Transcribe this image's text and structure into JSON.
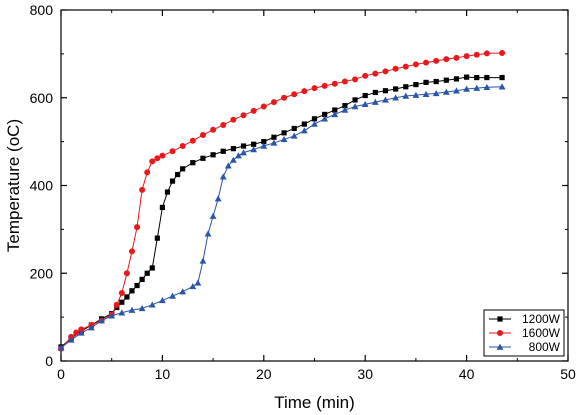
{
  "chart_data": {
    "type": "line",
    "xlabel": "Time (min)",
    "ylabel": "Temperature (oC)",
    "xlim": [
      0,
      50
    ],
    "ylim": [
      0,
      800
    ],
    "xticks": [
      "0",
      "10",
      "20",
      "30",
      "40",
      "50"
    ],
    "yticks": [
      "0",
      "200",
      "400",
      "600",
      "800"
    ],
    "grid": false,
    "legend_position": "bottom-right",
    "series": [
      {
        "name": "1200W",
        "color": "#000000",
        "marker": "square",
        "x": [
          0,
          1,
          2,
          3,
          4,
          5,
          5.5,
          6,
          6.5,
          7,
          7.5,
          8,
          8.5,
          9,
          9.5,
          10,
          10.5,
          11,
          11.5,
          12,
          13,
          14,
          15,
          16,
          17,
          18,
          19,
          20,
          21,
          22,
          23,
          24,
          25,
          26,
          27,
          28,
          29,
          30,
          31,
          32,
          33,
          34,
          35,
          36,
          37,
          38,
          39,
          40,
          41,
          42,
          43.5
        ],
        "y": [
          32,
          52,
          68,
          82,
          96,
          108,
          122,
          134,
          146,
          160,
          172,
          186,
          200,
          212,
          280,
          350,
          385,
          410,
          425,
          438,
          452,
          462,
          470,
          478,
          484,
          490,
          494,
          500,
          510,
          520,
          530,
          540,
          552,
          562,
          572,
          582,
          595,
          605,
          612,
          616,
          620,
          625,
          630,
          635,
          637,
          640,
          643,
          647,
          646,
          646,
          646
        ]
      },
      {
        "name": "1600W",
        "color": "#e8191c",
        "marker": "circle",
        "x": [
          0,
          1,
          1.5,
          2,
          3,
          4,
          5,
          5.5,
          6,
          6.5,
          7,
          7.5,
          8,
          8.5,
          9,
          9.5,
          10,
          11,
          12,
          13,
          14,
          15,
          16,
          17,
          18,
          19,
          20,
          21,
          22,
          23,
          24,
          25,
          26,
          27,
          28,
          29,
          30,
          31,
          32,
          33,
          34,
          35,
          36,
          37,
          38,
          39,
          40,
          41,
          42,
          43.5
        ],
        "y": [
          28,
          55,
          65,
          72,
          82,
          92,
          106,
          128,
          155,
          200,
          250,
          305,
          390,
          430,
          455,
          462,
          468,
          478,
          490,
          502,
          515,
          527,
          538,
          550,
          560,
          570,
          580,
          590,
          600,
          608,
          615,
          622,
          627,
          632,
          637,
          642,
          650,
          655,
          660,
          666,
          671,
          676,
          680,
          684,
          688,
          691,
          695,
          698,
          701,
          702
        ]
      },
      {
        "name": "800W",
        "color": "#2a55a8",
        "marker": "triangle",
        "x": [
          0,
          1,
          2,
          3,
          4,
          5,
          6,
          7,
          8,
          9,
          10,
          11,
          12,
          13,
          13.5,
          14,
          14.5,
          15,
          15.5,
          16,
          16.5,
          17,
          17.5,
          18,
          19,
          20,
          21,
          22,
          23,
          24,
          25,
          26,
          27,
          28,
          29,
          30,
          31,
          32,
          33,
          34,
          35,
          36,
          37,
          38,
          39,
          40,
          41,
          42,
          43.5
        ],
        "y": [
          30,
          48,
          64,
          76,
          92,
          103,
          110,
          116,
          120,
          128,
          138,
          148,
          158,
          170,
          178,
          228,
          290,
          330,
          370,
          420,
          445,
          458,
          468,
          475,
          482,
          490,
          497,
          505,
          513,
          525,
          540,
          552,
          562,
          572,
          580,
          585,
          590,
          595,
          600,
          604,
          606,
          608,
          610,
          613,
          616,
          620,
          622,
          624,
          625
        ]
      }
    ]
  }
}
